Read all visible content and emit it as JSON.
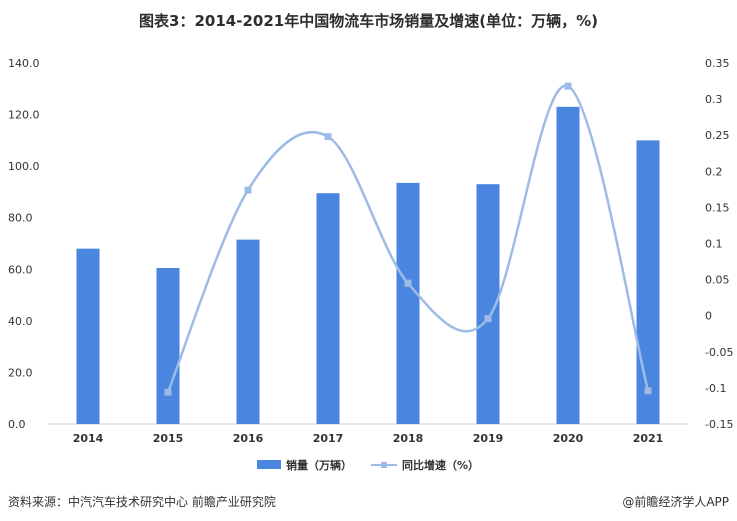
{
  "title": "图表3：2014-2021年中国物流车市场销量及增速(单位：万辆，%)",
  "source": "资料来源：中汽汽车技术研究中心 前瞻产业研究院",
  "brand": "@前瞻经济学人APP",
  "colors": {
    "bar": "#4a86e0",
    "line": "#9dbbe6",
    "axis": "#cccccc"
  },
  "chart_data": {
    "type": "bar",
    "categories": [
      "2014",
      "2015",
      "2016",
      "2017",
      "2018",
      "2019",
      "2020",
      "2021"
    ],
    "series": [
      {
        "name": "销量（万辆）",
        "type": "bar",
        "axis": "left",
        "values": [
          68,
          60.5,
          71.5,
          89.5,
          93.5,
          93,
          123,
          110
        ]
      },
      {
        "name": "同比增速（%）",
        "type": "line",
        "axis": "right",
        "smooth": true,
        "values": [
          null,
          -0.106,
          0.174,
          0.248,
          0.045,
          -0.004,
          0.318,
          -0.104
        ]
      }
    ],
    "ylim_left": [
      0,
      140
    ],
    "yticks_left": [
      "0.0",
      "20.0",
      "40.0",
      "60.0",
      "80.0",
      "100.0",
      "120.0",
      "140.0"
    ],
    "ylim_right": [
      -0.15,
      0.35
    ],
    "yticks_right": [
      "-0.15",
      "-0.1",
      "-0.05",
      "0",
      "0.05",
      "0.1",
      "0.15",
      "0.2",
      "0.25",
      "0.3",
      "0.35"
    ],
    "grid": false,
    "legend": "bottom"
  }
}
